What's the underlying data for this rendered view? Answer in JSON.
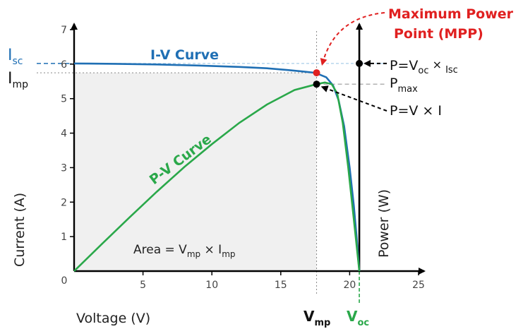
{
  "chart_data": {
    "type": "line",
    "xlabel": "Voltage (V)",
    "ylabel_left": "Current (A)",
    "ylabel_right": "Power (W)",
    "xlim": [
      0,
      25
    ],
    "ylim": [
      0,
      7
    ],
    "x_ticks": [
      "5",
      "10",
      "15",
      "20",
      "25"
    ],
    "y_ticks": [
      "1",
      "2",
      "3",
      "4",
      "5",
      "6",
      "7"
    ],
    "origin_label": "0",
    "iv_color": "#1f6fb4",
    "pv_color": "#2aa84a",
    "mpp_color": "#e02020",
    "grid": false,
    "series": [
      {
        "name": "I-V Curve",
        "x": [
          0,
          3,
          6,
          9,
          12,
          14,
          15.5,
          16.5,
          17.5,
          18.3,
          18.8,
          19.2,
          19.6,
          20.0,
          20.3,
          20.5,
          20.6,
          20.7
        ],
        "y": [
          6.02,
          6.01,
          5.99,
          5.96,
          5.92,
          5.88,
          5.83,
          5.79,
          5.75,
          5.62,
          5.38,
          4.95,
          4.2,
          3.0,
          1.9,
          1.0,
          0.5,
          0
        ]
      },
      {
        "name": "P-V Curve",
        "x": [
          0,
          2,
          4,
          6,
          8,
          10,
          12,
          14,
          16,
          17.6,
          18.2,
          18.7,
          19.1,
          19.5,
          19.9,
          20.3,
          20.7
        ],
        "y": [
          0,
          0.78,
          1.55,
          2.3,
          3.02,
          3.68,
          4.3,
          4.83,
          5.25,
          5.42,
          5.47,
          5.42,
          5.15,
          4.3,
          3.0,
          1.5,
          0
        ]
      }
    ],
    "points": {
      "mpp": {
        "x": 17.6,
        "y": 5.75
      },
      "pmax": {
        "x": 17.6,
        "y": 5.42
      },
      "voc_isc": {
        "x": 20.7,
        "y": 6.02
      }
    },
    "reference_values": {
      "isc": 6.02,
      "imp": 5.75,
      "vmp": 17.6,
      "voc": 20.7,
      "pmax_level": 5.42
    },
    "labels": {
      "isc_main": "I",
      "isc_sub": "sc",
      "imp_main": "I",
      "imp_sub": "mp",
      "iv_curve": "I-V Curve",
      "pv_curve": "P-V Curve",
      "mpp_line1": "Maximum Power",
      "mpp_line2": "Point (MPP)",
      "p_voc_prefix": "P=V",
      "p_voc_sub": "oc",
      "p_voc_times": " × ",
      "p_voc_isc": "Isc",
      "pmax_main": "P",
      "pmax_sub": "max",
      "p_vi": "P=V × I",
      "area_prefix": "Area = V",
      "area_sub1": "mp",
      "area_times": " × I",
      "area_sub2": "mp",
      "vmp_main": "V",
      "vmp_sub": "mp",
      "voc_main": "V",
      "voc_sub": "oc"
    }
  }
}
